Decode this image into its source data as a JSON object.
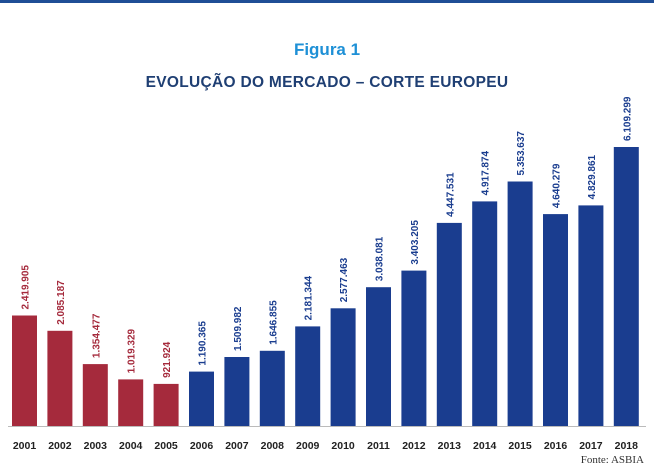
{
  "figure_label": "Figura 1",
  "source": "Fonte: ASBIA",
  "colors": {
    "early": "#a52a3c",
    "late": "#1a3d8f",
    "axis": "#bbbbbb",
    "tick": "#222222",
    "rule": "#1f4e96"
  },
  "chart_data": {
    "type": "bar",
    "title": "EVOLUÇÃO DO MERCADO – CORTE EUROPEU",
    "xlabel": "",
    "ylabel": "",
    "ylim": [
      0,
      6700000
    ],
    "grid": false,
    "categories": [
      "2001",
      "2002",
      "2003",
      "2004",
      "2005",
      "2006",
      "2007",
      "2008",
      "2009",
      "2010",
      "2011",
      "2012",
      "2013",
      "2014",
      "2015",
      "2016",
      "2017",
      "2018"
    ],
    "values": [
      2419905,
      2085187,
      1354477,
      1019329,
      921924,
      1190365,
      1509982,
      1646855,
      2181344,
      2577463,
      3038081,
      3403205,
      4447531,
      4917874,
      5353637,
      4640279,
      4829861,
      6109299
    ],
    "value_labels": [
      "2.419.905",
      "2.085.187",
      "1.354.477",
      "1.019.329",
      "921.924",
      "1.190.365",
      "1.509.982",
      "1.646.855",
      "2.181.344",
      "2.577.463",
      "3.038.081",
      "3.403.205",
      "4.447.531",
      "4.917.874",
      "5.353.637",
      "4.640.279",
      "4.829.861",
      "6.109.299"
    ],
    "bar_colors": [
      "early",
      "early",
      "early",
      "early",
      "early",
      "late",
      "late",
      "late",
      "late",
      "late",
      "late",
      "late",
      "late",
      "late",
      "late",
      "late",
      "late",
      "late"
    ]
  }
}
